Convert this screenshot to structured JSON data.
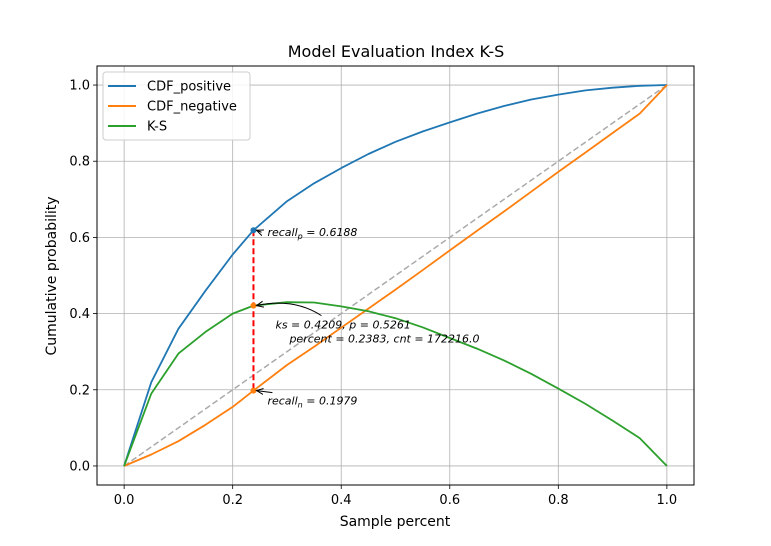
{
  "chart_data": {
    "type": "line",
    "title": "Model Evaluation Index K-S",
    "xlabel": "Sample percent",
    "ylabel": "Cumulative probability",
    "xlim": [
      -0.05,
      1.05
    ],
    "ylim": [
      -0.05,
      1.05
    ],
    "grid": true,
    "legend_placement": "top-left",
    "xticks": [
      0.0,
      0.2,
      0.4,
      0.6,
      0.8,
      1.0
    ],
    "yticks": [
      0.0,
      0.2,
      0.4,
      0.6,
      0.8,
      1.0
    ],
    "xtick_labels": [
      "0.0",
      "0.2",
      "0.4",
      "0.6",
      "0.8",
      "1.0"
    ],
    "ytick_labels": [
      "0.0",
      "0.2",
      "0.4",
      "0.6",
      "0.8",
      "1.0"
    ],
    "x": [
      0.0,
      0.05,
      0.1,
      0.15,
      0.2,
      0.2383,
      0.3,
      0.35,
      0.4,
      0.45,
      0.5,
      0.55,
      0.6,
      0.65,
      0.7,
      0.75,
      0.8,
      0.85,
      0.9,
      0.95,
      1.0
    ],
    "series": [
      {
        "name": "CDF_positive",
        "color": "#1f77b4",
        "values": [
          0.0,
          0.22,
          0.36,
          0.46,
          0.555,
          0.6188,
          0.695,
          0.742,
          0.782,
          0.819,
          0.851,
          0.878,
          0.902,
          0.925,
          0.945,
          0.962,
          0.975,
          0.986,
          0.993,
          0.998,
          1.0
        ]
      },
      {
        "name": "CDF_negative",
        "color": "#ff7f0e",
        "values": [
          0.0,
          0.03,
          0.065,
          0.108,
          0.155,
          0.1979,
          0.265,
          0.313,
          0.363,
          0.413,
          0.463,
          0.514,
          0.566,
          0.617,
          0.668,
          0.72,
          0.772,
          0.823,
          0.874,
          0.925,
          1.0
        ]
      },
      {
        "name": "K-S",
        "color": "#2ca02c",
        "values": [
          0.0,
          0.19,
          0.295,
          0.352,
          0.4,
          0.4209,
          0.43,
          0.429,
          0.419,
          0.406,
          0.388,
          0.364,
          0.336,
          0.308,
          0.277,
          0.242,
          0.203,
          0.163,
          0.119,
          0.073,
          0.0
        ]
      }
    ],
    "diagonal": {
      "x": [
        0,
        1
      ],
      "y": [
        0,
        1
      ],
      "color": "#aaaaaa",
      "style": "dashed"
    },
    "marker": {
      "x": 0.2383,
      "y_top": 0.6188,
      "y_bottom": 0.1979,
      "ks_y": 0.4209,
      "line_color": "#ff0000"
    },
    "annotations": [
      {
        "id": "recall_p",
        "base": "recall",
        "sub": "p",
        "value": " = 0.6188",
        "x": 0.2383,
        "y": 0.6188
      },
      {
        "id": "recall_n",
        "base": "recall",
        "sub": "n",
        "value": " = 0.1979",
        "x": 0.2383,
        "y": 0.1979
      },
      {
        "id": "ks_line1",
        "text": "ks = 0.4209, p = 0.5261",
        "x": 0.2383,
        "y": 0.4209
      },
      {
        "id": "ks_line2",
        "text": "percent = 0.2383, cnt = 172216.0"
      }
    ]
  }
}
